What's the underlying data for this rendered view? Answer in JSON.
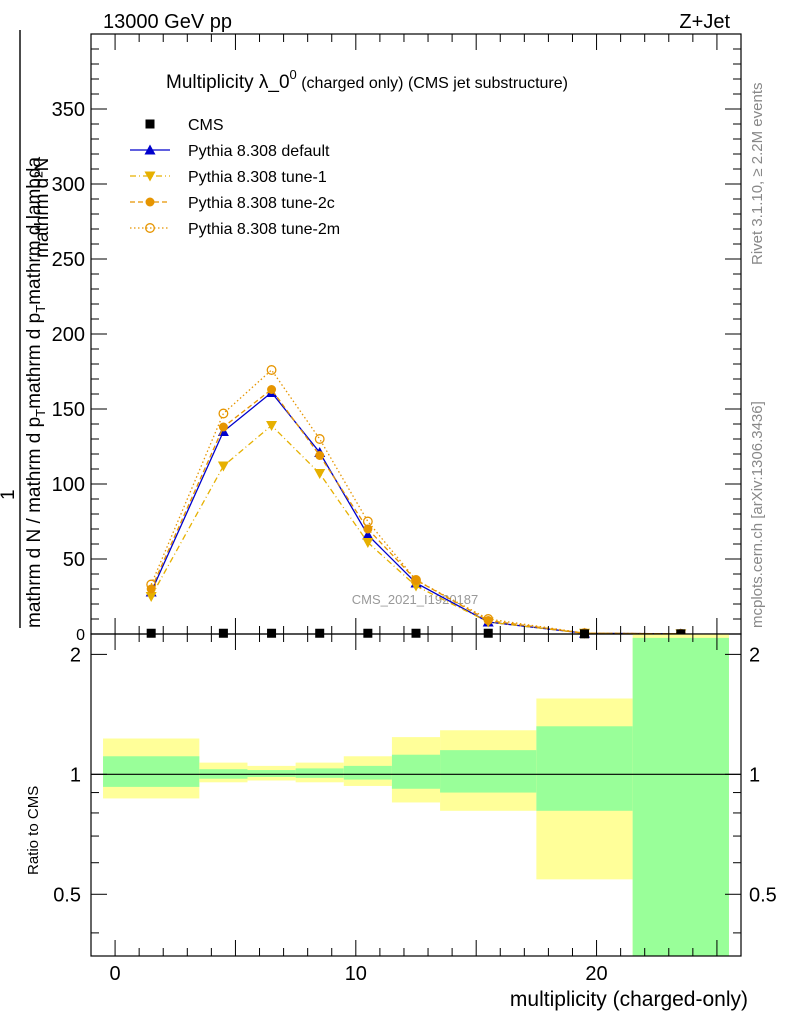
{
  "header": {
    "left": "13000 GeV pp",
    "right": "Z+Jet"
  },
  "side_labels": {
    "rivet": "Rivet 3.1.10, ≥ 2.2M events",
    "mcplots": "mcplots.cern.ch [arXiv:1306.3436]"
  },
  "chart_data": [
    {
      "type": "line",
      "title": "Multiplicity λ_0",
      "title_sup": "0",
      "title_suffix": " (charged only) (CMS jet substructure)",
      "watermark": "CMS_2021_I1920187",
      "ylabel": "1/(mathrm d N / mathrm d p_T mathrm d p_T mathrm d lambda) mathrm d²N",
      "ylim": [
        0,
        400
      ],
      "xlim": [
        -1,
        26
      ],
      "yticks": [
        50,
        100,
        150,
        200,
        250,
        300,
        350
      ],
      "grid": false,
      "legend_position": "top-left",
      "legend": [
        {
          "label": "CMS",
          "marker": "square",
          "color": "#000000",
          "line": "none"
        },
        {
          "label": "Pythia 8.308 default",
          "marker": "triangle-up",
          "color": "#0000cc",
          "line": "solid"
        },
        {
          "label": "Pythia 8.308 tune-1",
          "marker": "triangle-down",
          "color": "#e6b000",
          "line": "dashdot"
        },
        {
          "label": "Pythia 8.308 tune-2c",
          "marker": "circle",
          "color": "#e69500",
          "line": "dashed"
        },
        {
          "label": "Pythia 8.308 tune-2m",
          "marker": "open-circle",
          "color": "#e69500",
          "line": "dotted"
        }
      ],
      "x": [
        1.5,
        4.5,
        6.5,
        8.5,
        10.5,
        12.5,
        15.5,
        19.5,
        23.5
      ],
      "series": [
        {
          "name": "CMS",
          "values": [
            0.5,
            0.5,
            0.5,
            0.5,
            0.5,
            0.5,
            0.5,
            0.1,
            0.1
          ]
        },
        {
          "name": "Pythia 8.308 default",
          "values": [
            28,
            135,
            161,
            121,
            66,
            34,
            8,
            0.5,
            0.1
          ]
        },
        {
          "name": "Pythia 8.308 tune-1",
          "values": [
            25,
            112,
            139,
            107,
            61,
            32,
            8,
            0.5,
            0.1
          ]
        },
        {
          "name": "Pythia 8.308 tune-2c",
          "values": [
            30,
            138,
            163,
            119,
            70,
            36,
            9,
            0.5,
            0.1
          ]
        },
        {
          "name": "Pythia 8.308 tune-2m",
          "values": [
            33,
            147,
            176,
            130,
            75,
            36,
            10,
            0.6,
            0.1
          ]
        }
      ]
    },
    {
      "type": "area",
      "ylabel": "Ratio to CMS",
      "xlabel": "multiplicity (charged-only)",
      "xlim": [
        -1,
        26
      ],
      "ylim": [
        0.35,
        2.25
      ],
      "xticks": [
        0,
        10,
        20
      ],
      "yticks": [
        0.5,
        1,
        2
      ],
      "reference_line": 1,
      "bins": [
        {
          "lo": -0.5,
          "hi": 3.5,
          "green": [
            0.93,
            1.11
          ],
          "yellow": [
            0.87,
            1.23
          ]
        },
        {
          "lo": 3.5,
          "hi": 5.5,
          "green": [
            0.975,
            1.03
          ],
          "yellow": [
            0.955,
            1.07
          ]
        },
        {
          "lo": 5.5,
          "hi": 7.5,
          "green": [
            0.985,
            1.025
          ],
          "yellow": [
            0.965,
            1.05
          ]
        },
        {
          "lo": 7.5,
          "hi": 9.5,
          "green": [
            0.98,
            1.035
          ],
          "yellow": [
            0.955,
            1.07
          ]
        },
        {
          "lo": 9.5,
          "hi": 11.5,
          "green": [
            0.97,
            1.05
          ],
          "yellow": [
            0.935,
            1.11
          ]
        },
        {
          "lo": 11.5,
          "hi": 13.5,
          "green": [
            0.92,
            1.12
          ],
          "yellow": [
            0.85,
            1.24
          ]
        },
        {
          "lo": 13.5,
          "hi": 17.5,
          "green": [
            0.9,
            1.15
          ],
          "yellow": [
            0.81,
            1.29
          ]
        },
        {
          "lo": 17.5,
          "hi": 21.5,
          "green": [
            0.81,
            1.32
          ],
          "yellow": [
            0.545,
            1.55
          ]
        },
        {
          "lo": 21.5,
          "hi": 25.5,
          "green": [
            0.35,
            2.2
          ],
          "yellow": [
            0.35,
            2.25
          ]
        }
      ]
    }
  ]
}
